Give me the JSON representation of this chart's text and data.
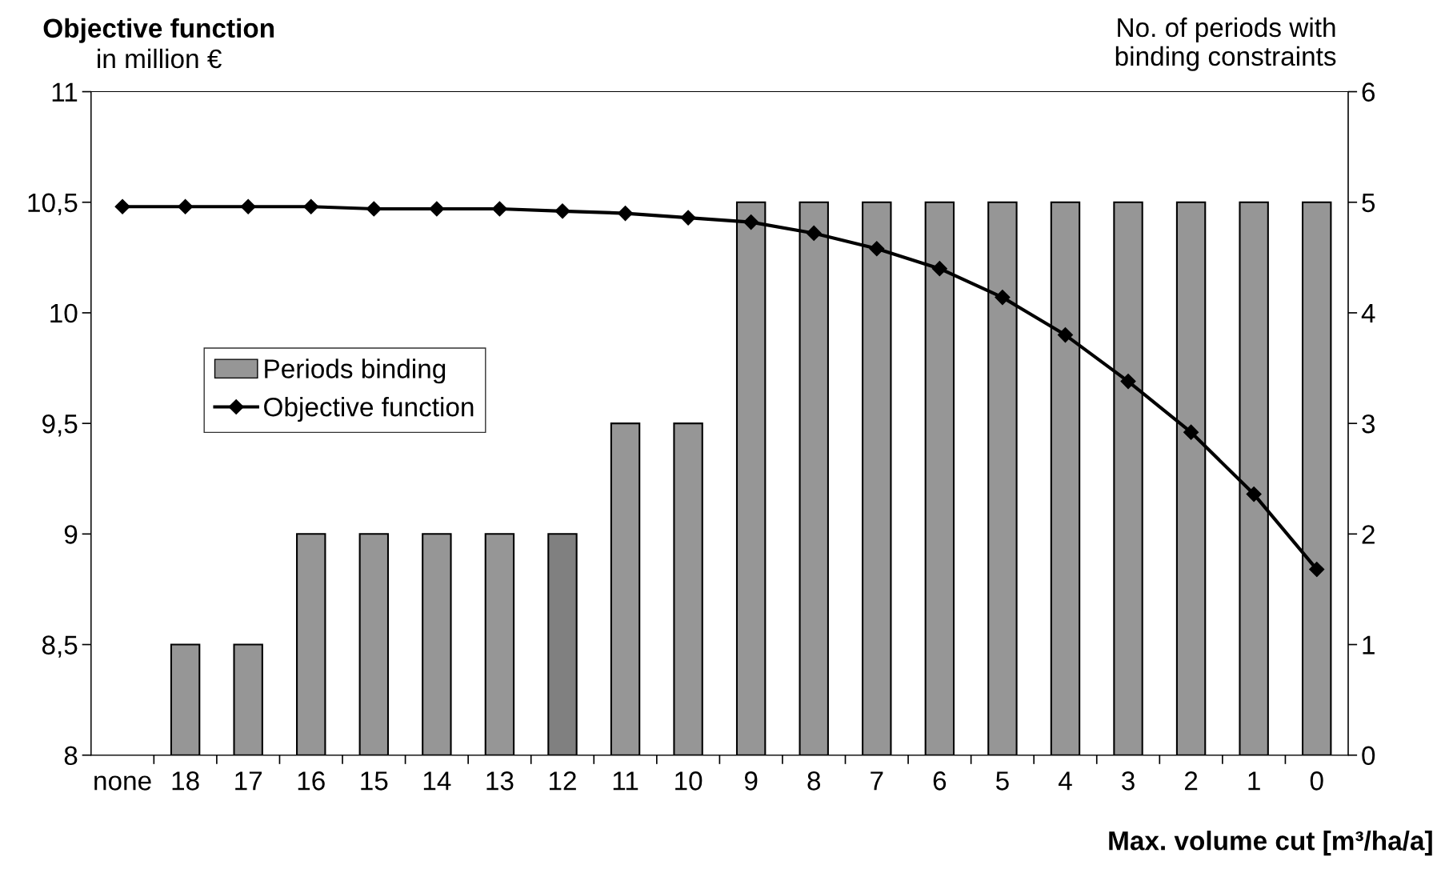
{
  "chart_data": {
    "type": "bar",
    "xlabel": "Max. volume cut [m³/ha/a]",
    "ylabel": "Objective function\nin million €",
    "y2label": "No. of periods with\nbinding constraints",
    "categories": [
      "none",
      "18",
      "17",
      "16",
      "15",
      "14",
      "13",
      "12",
      "11",
      "10",
      "9",
      "8",
      "7",
      "6",
      "5",
      "4",
      "3",
      "2",
      "1",
      "0"
    ],
    "series": [
      {
        "name": "Periods binding",
        "type": "bar",
        "axis": "y2",
        "color": "#969696",
        "colors": [
          "#969696",
          "#969696",
          "#969696",
          "#969696",
          "#969696",
          "#969696",
          "#969696",
          "#808080",
          "#969696",
          "#969696",
          "#969696",
          "#969696",
          "#969696",
          "#969696",
          "#969696",
          "#969696",
          "#969696",
          "#969696",
          "#969696",
          "#969696"
        ],
        "values": [
          0,
          1,
          1,
          2,
          2,
          2,
          2,
          2,
          3,
          3,
          5,
          5,
          5,
          5,
          5,
          5,
          5,
          5,
          5,
          5
        ]
      },
      {
        "name": "Objective function",
        "type": "line",
        "color": "#000000",
        "marker": "diamond",
        "values": [
          10.48,
          10.48,
          10.48,
          10.48,
          10.47,
          10.47,
          10.47,
          10.46,
          10.45,
          10.43,
          10.41,
          10.36,
          10.29,
          10.2,
          10.07,
          9.9,
          9.69,
          9.46,
          9.18,
          8.84
        ]
      }
    ],
    "ylim": [
      8,
      11
    ],
    "yticks": [
      8,
      {
        "value": 8.5,
        "label": "8,5"
      },
      9,
      {
        "value": 9.5,
        "label": "9,5"
      },
      10,
      {
        "value": 10.5,
        "label": "10,5"
      },
      11
    ],
    "y2lim": [
      0,
      6
    ],
    "y2ticks": [
      0,
      1,
      2,
      3,
      4,
      5,
      6
    ],
    "grid": false,
    "legend": "center left"
  }
}
